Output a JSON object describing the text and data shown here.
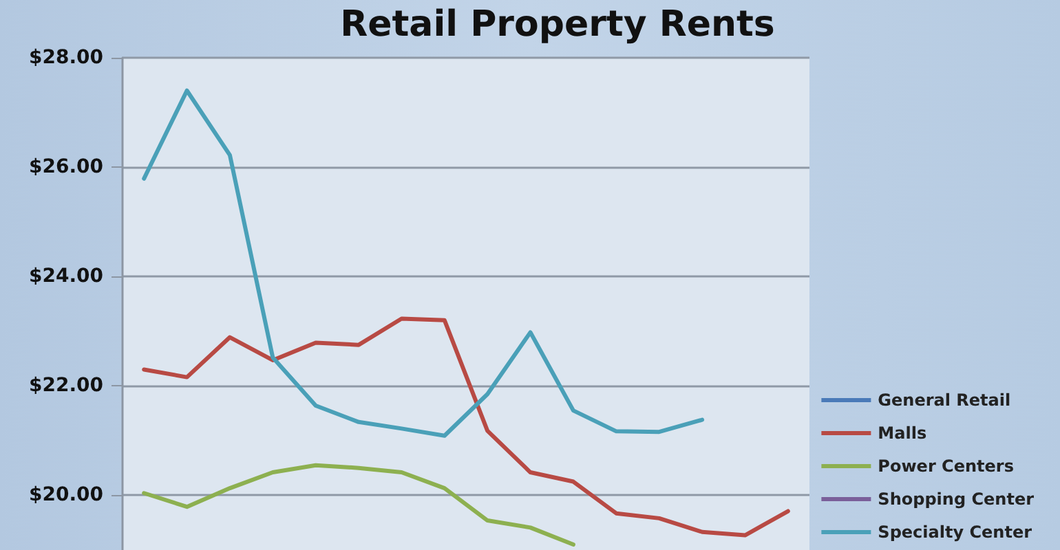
{
  "chart_data": {
    "type": "line",
    "title": "Retail Property Rents",
    "categories": [
      null,
      null,
      null,
      null,
      null,
      null,
      null,
      null,
      null,
      null,
      null,
      null,
      null,
      null,
      null,
      null
    ],
    "series": [
      {
        "name": "General Retail",
        "color": "#4a7ab8",
        "values": [
          null,
          null,
          null,
          null,
          null,
          null,
          null,
          null,
          null,
          null,
          null,
          null,
          null,
          null,
          null,
          null
        ]
      },
      {
        "name": "Malls",
        "color": "#b84a44",
        "values": [
          22.3,
          22.16,
          22.89,
          22.47,
          22.79,
          22.75,
          23.23,
          23.2,
          21.18,
          20.42,
          20.25,
          19.67,
          19.58,
          19.33,
          19.27,
          19.71
        ]
      },
      {
        "name": "Power Centers",
        "color": "#8db050",
        "values": [
          20.04,
          19.79,
          20.13,
          20.42,
          20.55,
          20.5,
          20.42,
          20.13,
          19.54,
          19.41,
          19.1,
          null,
          null,
          null,
          null,
          null
        ]
      },
      {
        "name": "Shopping Center",
        "color": "#7a5f9a",
        "values": [
          null,
          null,
          null,
          null,
          null,
          null,
          null,
          null,
          null,
          null,
          null,
          null,
          null,
          null,
          null,
          null
        ]
      },
      {
        "name": "Specialty Center",
        "color": "#4aa0b8",
        "values": [
          25.79,
          27.4,
          26.22,
          22.52,
          21.64,
          21.34,
          21.22,
          21.09,
          21.85,
          22.98,
          21.55,
          21.17,
          21.16,
          21.38,
          null,
          null
        ]
      }
    ],
    "ylim": [
      19,
      28
    ],
    "yticks": [
      {
        "value": 20,
        "label": "$20.00"
      },
      {
        "value": 22,
        "label": "$22.00"
      },
      {
        "value": 24,
        "label": "$24.00"
      },
      {
        "value": 26,
        "label": "$26.00"
      },
      {
        "value": 28,
        "label": "$28.00"
      }
    ],
    "grid": "y",
    "legend": "right",
    "marker": "none",
    "line_style": "solid",
    "tick_labels": "y"
  }
}
